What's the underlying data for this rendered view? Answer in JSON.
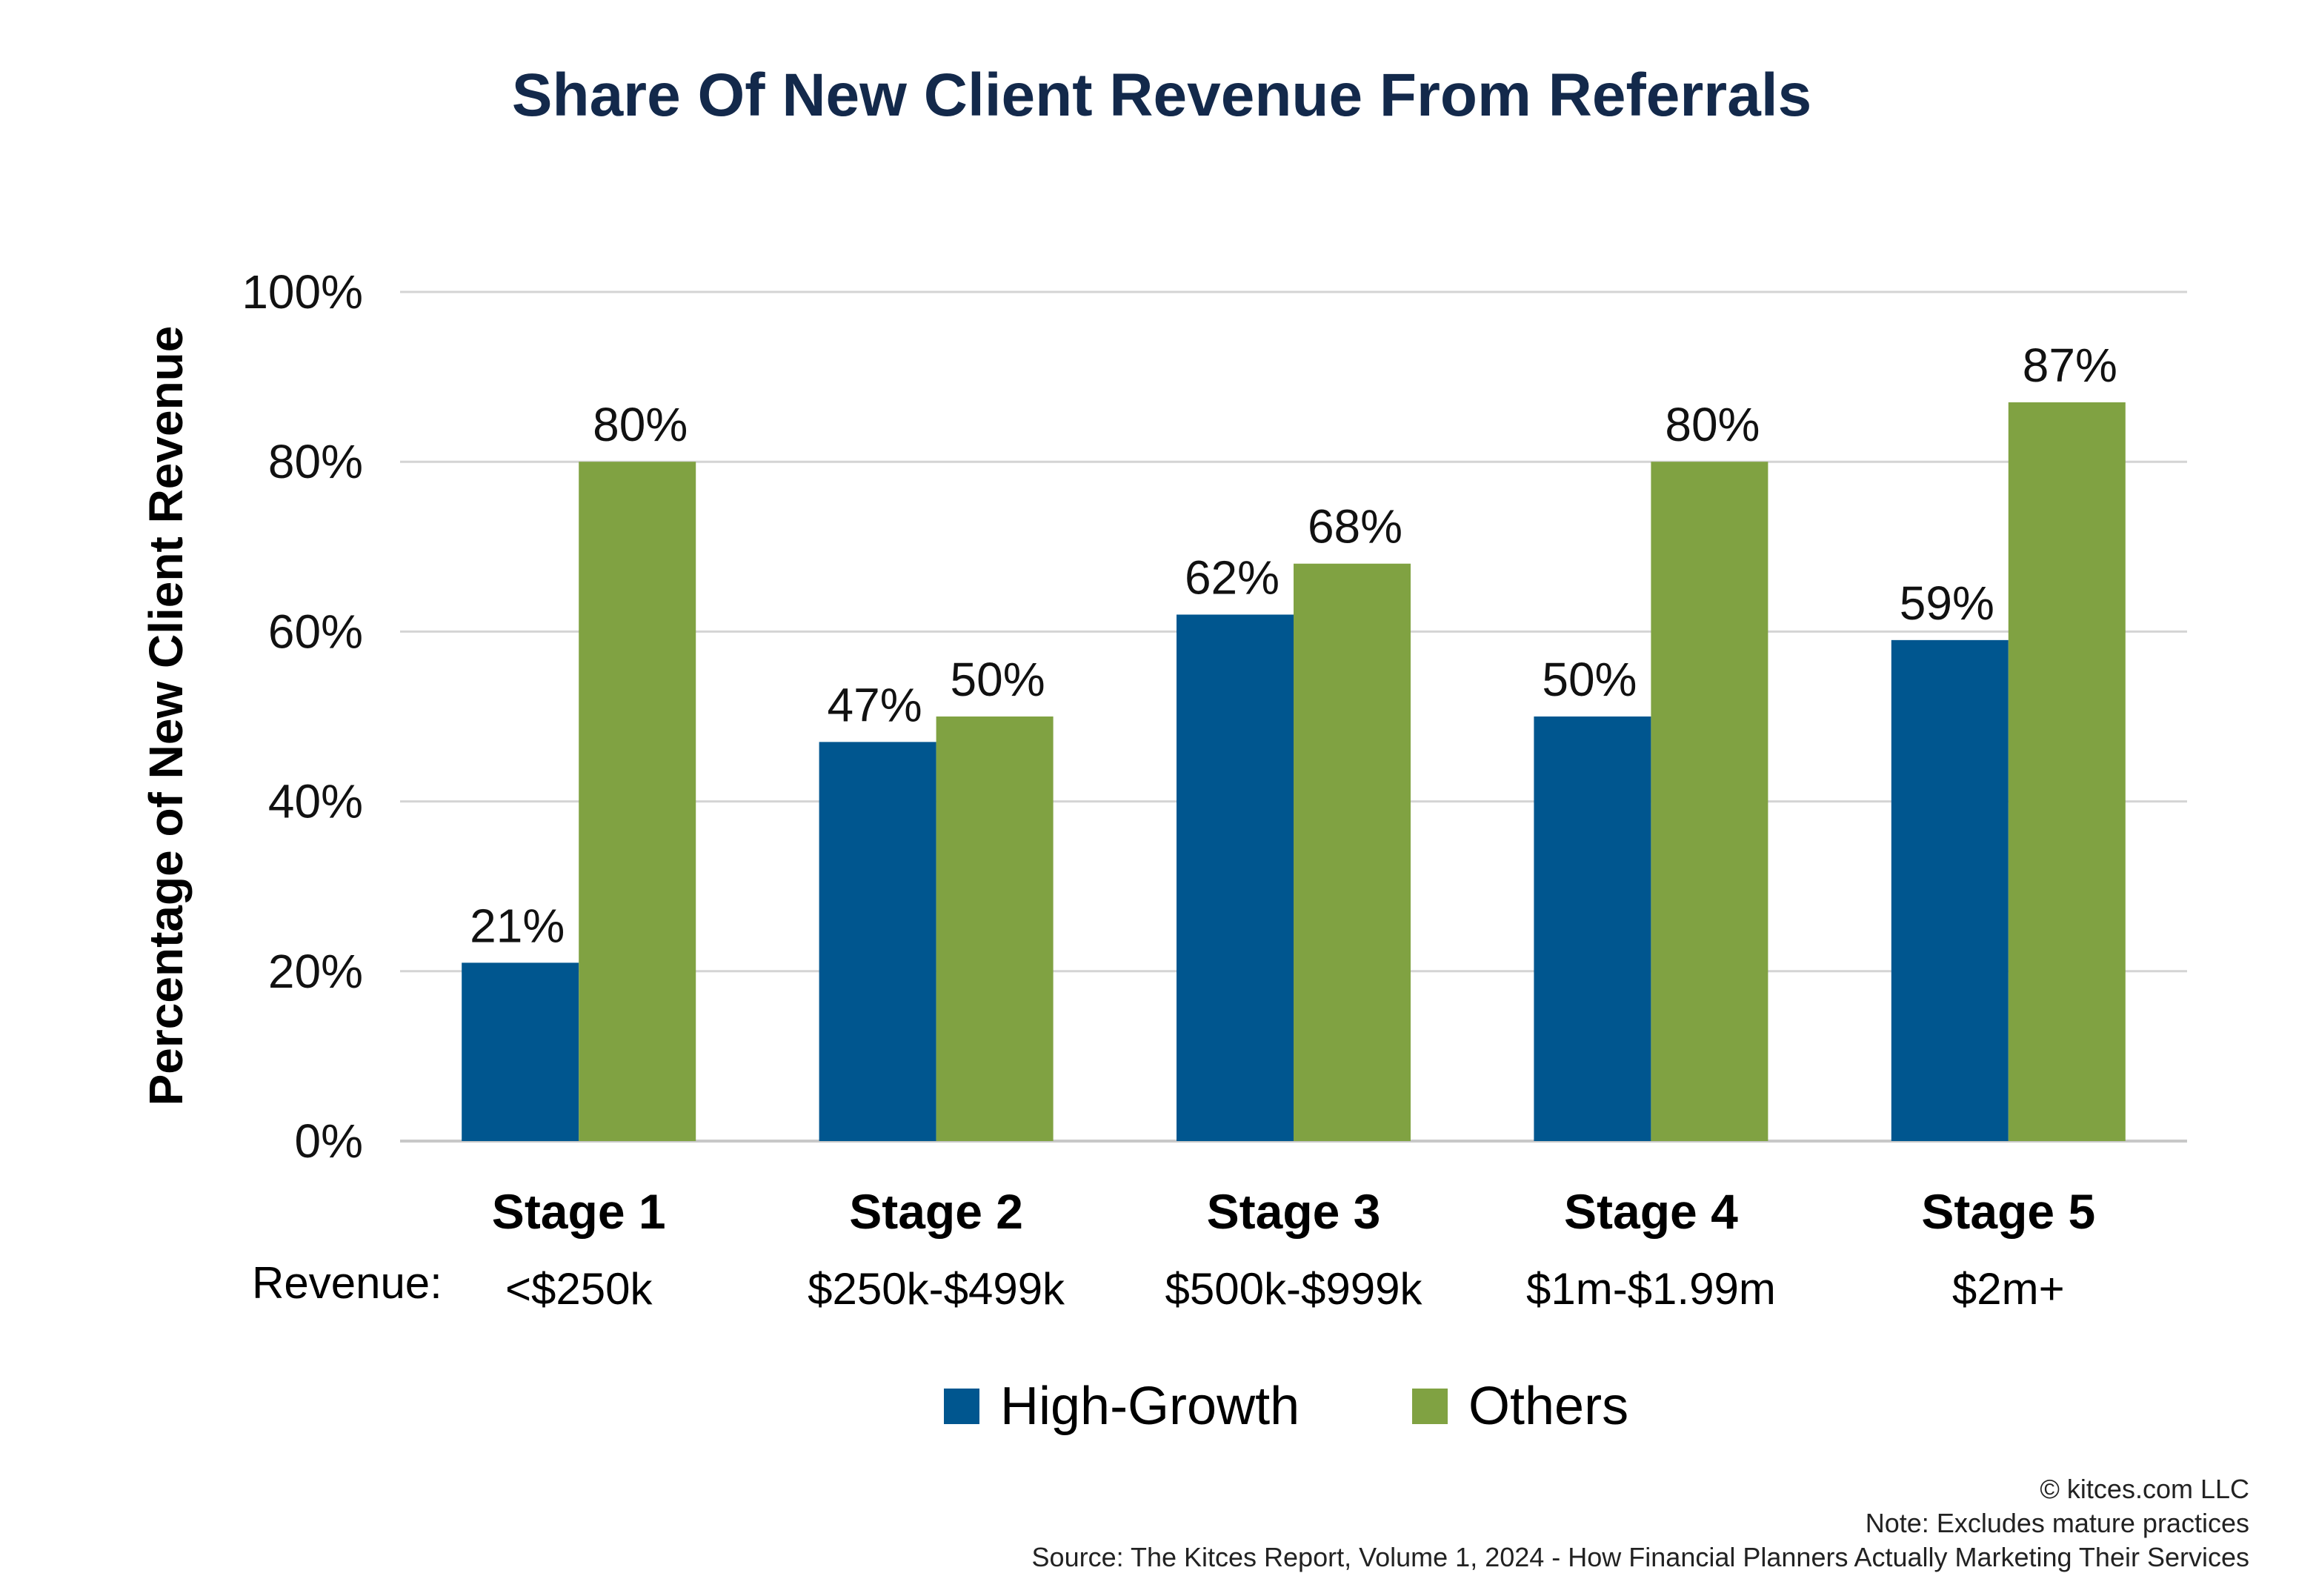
{
  "colors": {
    "high_growth": "#00568f",
    "others": "#80a242",
    "title": "#13294b"
  },
  "chart_data": {
    "type": "bar",
    "title": "Share Of New Client Revenue From Referrals",
    "ylabel": "Percentage of New Client Revenue",
    "xlabel": "",
    "ylim": [
      0,
      100
    ],
    "yticks": [
      "0%",
      "20%",
      "40%",
      "60%",
      "80%",
      "100%"
    ],
    "categories": [
      "Stage 1",
      "Stage 2",
      "Stage 3",
      "Stage 4",
      "Stage 5"
    ],
    "revenue_label": "Revenue:",
    "revenue_ranges": [
      "<$250k",
      "$250k-$499k",
      "$500k-$999k",
      "$1m-$1.99m",
      "$2m+"
    ],
    "series": [
      {
        "name": "High-Growth",
        "values": [
          21,
          47,
          62,
          50,
          59
        ],
        "labels": [
          "21%",
          "47%",
          "62%",
          "50%",
          "59%"
        ]
      },
      {
        "name": "Others",
        "values": [
          80,
          50,
          68,
          80,
          87
        ],
        "labels": [
          "80%",
          "50%",
          "68%",
          "80%",
          "87%"
        ]
      }
    ],
    "grid": true,
    "legend": "bottom-center"
  },
  "footer": {
    "copyright": "© kitces.com LLC",
    "note": "Note: Excludes mature practices",
    "source": "Source: The Kitces Report, Volume 1, 2024 - How Financial Planners Actually Marketing Their Services"
  }
}
